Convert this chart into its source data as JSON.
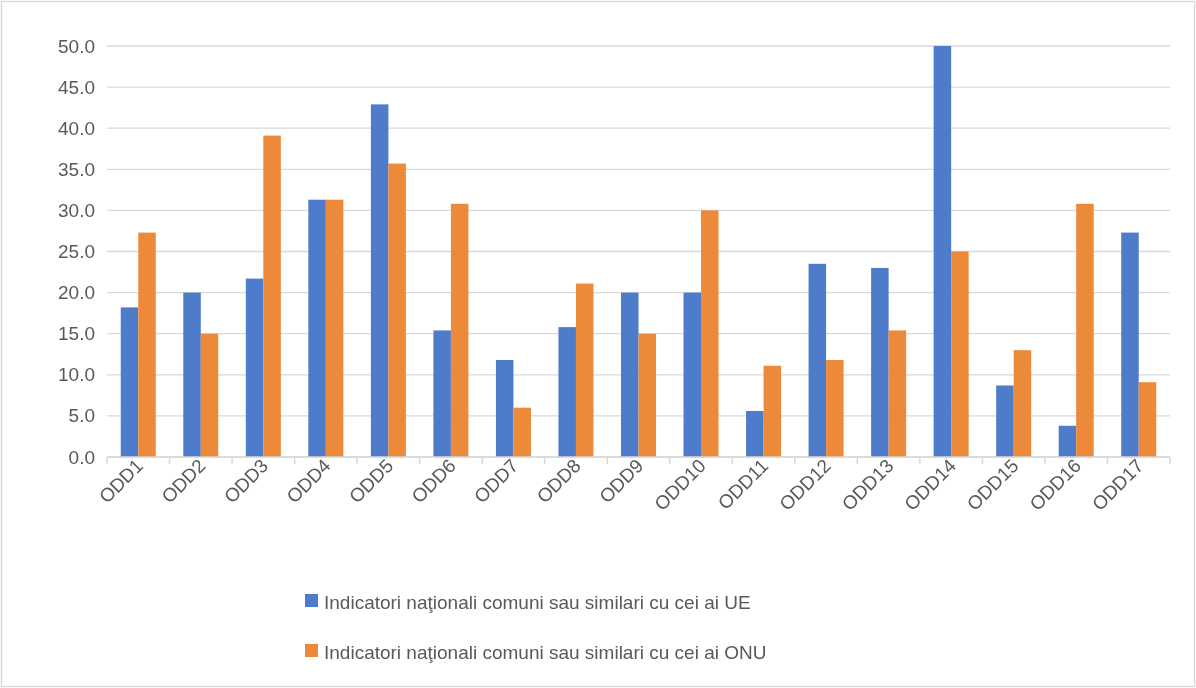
{
  "chart_data": {
    "type": "bar",
    "categories": [
      "ODD1",
      "ODD2",
      "ODD3",
      "ODD4",
      "ODD5",
      "ODD6",
      "ODD7",
      "ODD8",
      "ODD9",
      "ODD10",
      "ODD11",
      "ODD12",
      "ODD13",
      "ODD14",
      "ODD15",
      "ODD16",
      "ODD17"
    ],
    "series": [
      {
        "name": "Indicatori naţionali comuni sau similari cu cei ai UE",
        "color": "#4e7ccb",
        "values": [
          18.2,
          20.0,
          21.7,
          31.3,
          42.9,
          15.4,
          11.8,
          15.8,
          20.0,
          20.0,
          5.6,
          23.5,
          23.0,
          50.0,
          8.7,
          3.8,
          27.3
        ]
      },
      {
        "name": "Indicatori naţionali comuni sau similari cu cei ai ONU",
        "color": "#ed8a3a",
        "values": [
          27.3,
          15.0,
          39.1,
          31.3,
          35.7,
          30.8,
          6.0,
          21.1,
          15.0,
          30.0,
          11.1,
          11.8,
          15.4,
          25.0,
          13.0,
          30.8,
          9.1
        ]
      }
    ],
    "ylim": [
      0,
      50
    ],
    "yticks": [
      {
        "value": 0,
        "label": "0.0"
      },
      {
        "value": 5,
        "label": "5.0"
      },
      {
        "value": 10,
        "label": "10.0"
      },
      {
        "value": 15,
        "label": "15.0"
      },
      {
        "value": 20,
        "label": "20.0"
      },
      {
        "value": 25,
        "label": "25.0"
      },
      {
        "value": 30,
        "label": "30.0"
      },
      {
        "value": 35,
        "label": "35.0"
      },
      {
        "value": 40,
        "label": "40.0"
      },
      {
        "value": 45,
        "label": "45.0"
      },
      {
        "value": 50,
        "label": "50.0"
      }
    ],
    "grid": "y",
    "legend": "bottom"
  }
}
